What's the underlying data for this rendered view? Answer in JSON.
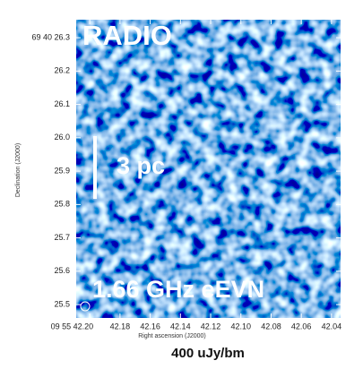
{
  "chart_data": {
    "type": "image",
    "annotations": [
      "RADIO",
      "3 pc",
      "1.66 GHz eEVN"
    ],
    "xlabel": "Right ascension (J2000)",
    "ylabel": "Declination (J2000)",
    "caption": "400 uJy/bm",
    "xlim": [
      42.209,
      42.034
    ],
    "ylim": [
      25.46,
      26.354
    ],
    "xticks": [
      {
        "value": 42.2,
        "label": "09 55 42.20"
      },
      42.18,
      42.16,
      42.14,
      {
        "value": 42.1,
        "label": "42.12"
      },
      {
        "value": 42.1,
        "label": "42.10"
      },
      42.08,
      42.06,
      42.04
    ],
    "yticks": [
      25.5,
      25.6,
      25.7,
      25.8,
      25.9,
      {
        "value": 26,
        "label": "26.0"
      },
      26.1,
      26.2,
      {
        "value": 26.3,
        "label": "69 40 26.3"
      }
    ]
  }
}
